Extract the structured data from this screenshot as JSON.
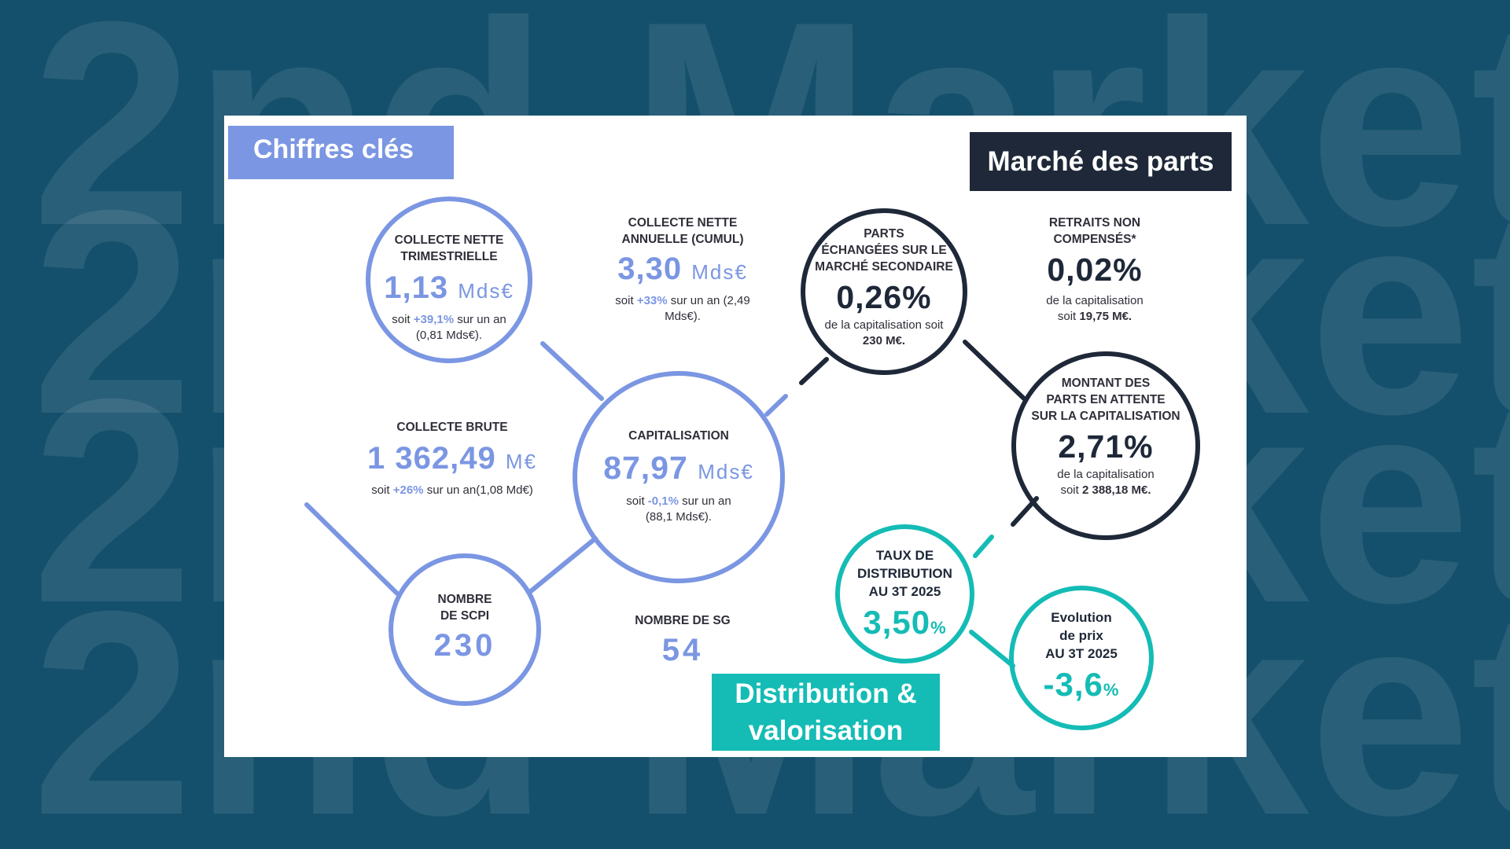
{
  "background": {
    "word": "2nd Market"
  },
  "colors": {
    "background": "#14506b",
    "purple": "#7b96e2",
    "dark": "#1e2838",
    "teal": "#14bcb5"
  },
  "tags": {
    "chiffres": "Chiffres clés",
    "marche": "Marché des parts",
    "distribution_1": "Distribution &",
    "distribution_2": "valorisation"
  },
  "collecte_nette_trimestrielle": {
    "label_1": "COLLECTE NETTE",
    "label_2": "TRIMESTRIELLE",
    "value": "1,13",
    "unit": "Mds€",
    "note_prefix": "soit",
    "note_highlight": "+39,1%",
    "note_suffix": "sur un an",
    "note_line2": "(0,81 Mds€)."
  },
  "collecte_nette_annuelle": {
    "label_1": "COLLECTE NETTE",
    "label_2": "ANNUELLE (CUMUL)",
    "value": "3,30",
    "unit": "Mds€",
    "note_prefix": "soit",
    "note_highlight": "+33%",
    "note_suffix": "sur un an (2,49",
    "note_line2": "Mds€)."
  },
  "collecte_brute": {
    "label": "COLLECTE BRUTE",
    "value": "1 362,49",
    "unit": "M€",
    "note_prefix": "soit",
    "note_highlight": "+26%",
    "note_suffix": "sur un an(1,08 Md€)"
  },
  "capitalisation": {
    "label": "CAPITALISATION",
    "value": "87,97",
    "unit": "Mds€",
    "note_prefix": "soit",
    "note_highlight": "-0,1%",
    "note_suffix": "sur un an",
    "note_line2": "(88,1 Mds€)."
  },
  "nombre_scpi": {
    "label_1": "NOMBRE",
    "label_2": "DE SCPI",
    "value": "230"
  },
  "nombre_sg": {
    "label": "NOMBRE DE SG",
    "value": "54"
  },
  "parts_echangees": {
    "label_1": "PARTS",
    "label_2": "ÉCHANGÉES SUR LE",
    "label_3": "MARCHÉ SECONDAIRE",
    "value": "0,26%",
    "note_line1": "de la capitalisation soit",
    "note_bold": "230 M€."
  },
  "retraits": {
    "label_1": "RETRAITS NON",
    "label_2": "COMPENSÉS*",
    "value": "0,02%",
    "note_line1": "de la capitalisation",
    "note_prefix": "soit",
    "note_bold": "19,75 M€."
  },
  "parts_attente": {
    "label_1": "MONTANT DES",
    "label_2": "PARTS EN ATTENTE",
    "label_3": "SUR LA CAPITALISATION",
    "value": "2,71%",
    "note_line1": "de la capitalisation",
    "note_prefix": "soit",
    "note_bold": "2 388,18 M€."
  },
  "taux_distribution": {
    "label_1": "TAUX DE",
    "label_2": "DISTRIBUTION",
    "label_3": "AU 3T 2025",
    "value": "3,50",
    "unit": "%"
  },
  "evolution_prix": {
    "label_1": "Evolution",
    "label_2": "de prix",
    "label_3": "AU 3T 2025",
    "value": "-3,6",
    "unit": "%"
  }
}
